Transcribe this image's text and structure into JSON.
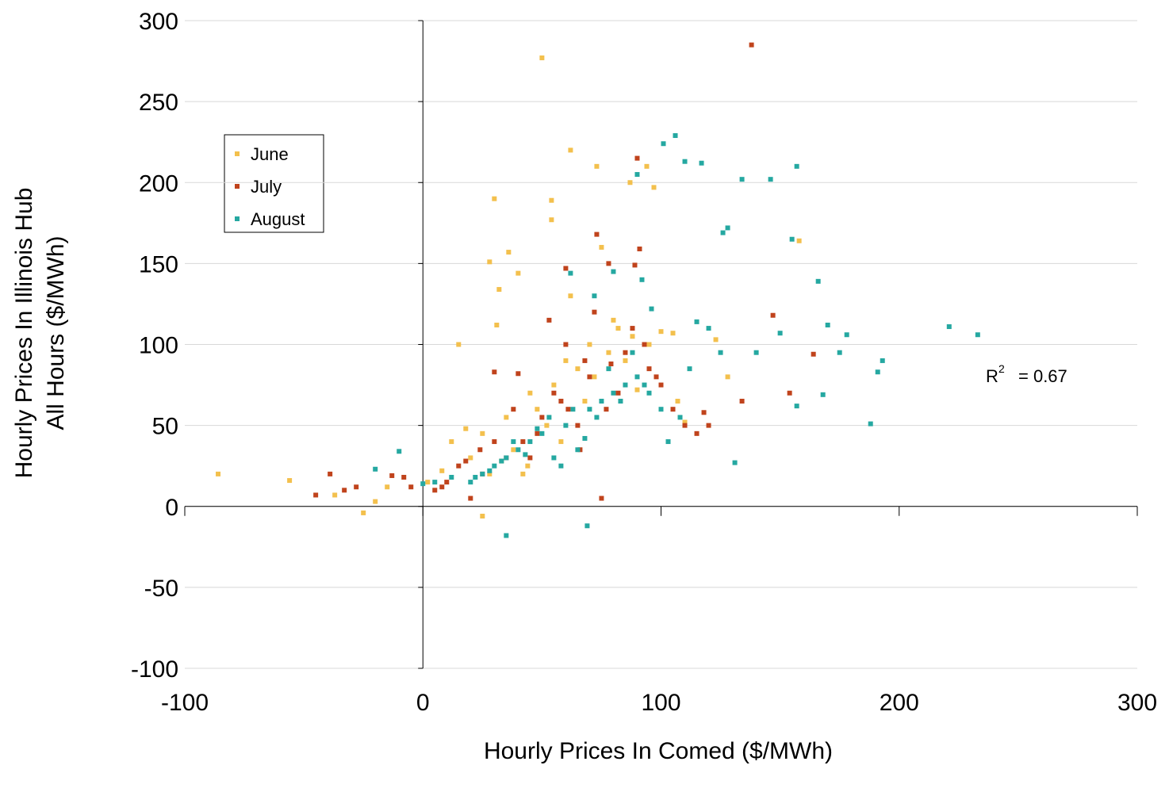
{
  "chart_data": {
    "type": "scatter",
    "y_label": [
      "Hourly Prices In Illinois Hub",
      "All Hours  ($/MWh)"
    ],
    "x_label": "Hourly Prices In Comed ($/MWh)",
    "annotation": {
      "base": "R",
      "superscript": "2",
      "text": "= 0.67"
    },
    "xlim": [
      -100,
      300
    ],
    "xticks": [
      -100,
      0,
      100,
      200,
      300
    ],
    "ylim": [
      -100,
      300
    ],
    "yticks": [
      -100,
      -50,
      0,
      50,
      100,
      150,
      200,
      250,
      300
    ],
    "grid": true,
    "legend": "upper left",
    "series": [
      {
        "name": "June",
        "color": "#f3c04d",
        "x": [
          50,
          -86,
          -56,
          -25,
          -37,
          -20,
          -15,
          2,
          8,
          62,
          73,
          30,
          54,
          54,
          28,
          36,
          32,
          94,
          87,
          97,
          15,
          40,
          123,
          105,
          158,
          42,
          25,
          31,
          107,
          128,
          70,
          82,
          60,
          45,
          20,
          25,
          35,
          48,
          55,
          65,
          78,
          88,
          95,
          100,
          38,
          52,
          68,
          72,
          85,
          90,
          58,
          44,
          33,
          28,
          18,
          12,
          62,
          80,
          110,
          75
        ],
        "y": [
          277,
          20,
          16,
          -4,
          7,
          3,
          12,
          15,
          22,
          220,
          210,
          190,
          189,
          177,
          151,
          157,
          134,
          210,
          200,
          197,
          100,
          144,
          103,
          107,
          164,
          20,
          -6,
          112,
          65,
          80,
          100,
          110,
          90,
          70,
          30,
          45,
          55,
          60,
          75,
          85,
          95,
          105,
          100,
          108,
          35,
          50,
          65,
          80,
          90,
          72,
          40,
          25,
          28,
          20,
          48,
          40,
          130,
          115,
          52,
          160
        ]
      },
      {
        "name": "July",
        "color": "#c0431c",
        "x": [
          138,
          90,
          91,
          73,
          60,
          78,
          89,
          147,
          164,
          154,
          134,
          -45,
          -39,
          -28,
          -13,
          -5,
          5,
          10,
          20,
          75,
          42,
          61,
          79,
          93,
          100,
          55,
          65,
          70,
          85,
          48,
          35,
          30,
          25,
          15,
          38,
          50,
          58,
          68,
          82,
          95,
          105,
          110,
          115,
          120,
          60,
          72,
          88,
          45,
          40,
          30,
          24,
          18,
          8,
          -8,
          -33,
          53,
          66,
          77,
          98,
          118
        ],
        "y": [
          285,
          215,
          159,
          168,
          147,
          150,
          149,
          118,
          94,
          70,
          65,
          7,
          20,
          12,
          19,
          12,
          10,
          15,
          5,
          5,
          40,
          60,
          88,
          100,
          75,
          70,
          50,
          80,
          95,
          45,
          30,
          83,
          20,
          25,
          60,
          55,
          65,
          90,
          70,
          85,
          60,
          50,
          45,
          50,
          100,
          120,
          110,
          30,
          82,
          40,
          35,
          28,
          12,
          18,
          10,
          115,
          35,
          60,
          80,
          58
        ]
      },
      {
        "name": "August",
        "color": "#25a8a1",
        "x": [
          106,
          101,
          90,
          110,
          117,
          134,
          157,
          146,
          126,
          128,
          155,
          166,
          170,
          178,
          221,
          233,
          188,
          191,
          193,
          175,
          168,
          157,
          150,
          140,
          131,
          35,
          69,
          -20,
          -10,
          115,
          96,
          92,
          62,
          80,
          20,
          25,
          30,
          35,
          40,
          45,
          50,
          55,
          60,
          65,
          70,
          75,
          80,
          85,
          90,
          95,
          100,
          22,
          28,
          33,
          38,
          43,
          48,
          53,
          58,
          63,
          68,
          73,
          78,
          83,
          88,
          93,
          12,
          5,
          0,
          108,
          120,
          125,
          112,
          103,
          72
        ],
        "y": [
          229,
          224,
          205,
          213,
          212,
          202,
          210,
          202,
          169,
          172,
          165,
          139,
          112,
          106,
          111,
          106,
          51,
          83,
          90,
          95,
          69,
          62,
          107,
          95,
          27,
          -18,
          -12,
          23,
          34,
          114,
          122,
          140,
          144,
          145,
          15,
          20,
          25,
          30,
          35,
          40,
          45,
          30,
          50,
          35,
          60,
          65,
          70,
          75,
          80,
          70,
          60,
          18,
          22,
          28,
          40,
          32,
          48,
          55,
          25,
          60,
          42,
          55,
          85,
          65,
          95,
          75,
          18,
          15,
          14,
          55,
          110,
          95,
          85,
          40,
          130
        ]
      }
    ]
  }
}
